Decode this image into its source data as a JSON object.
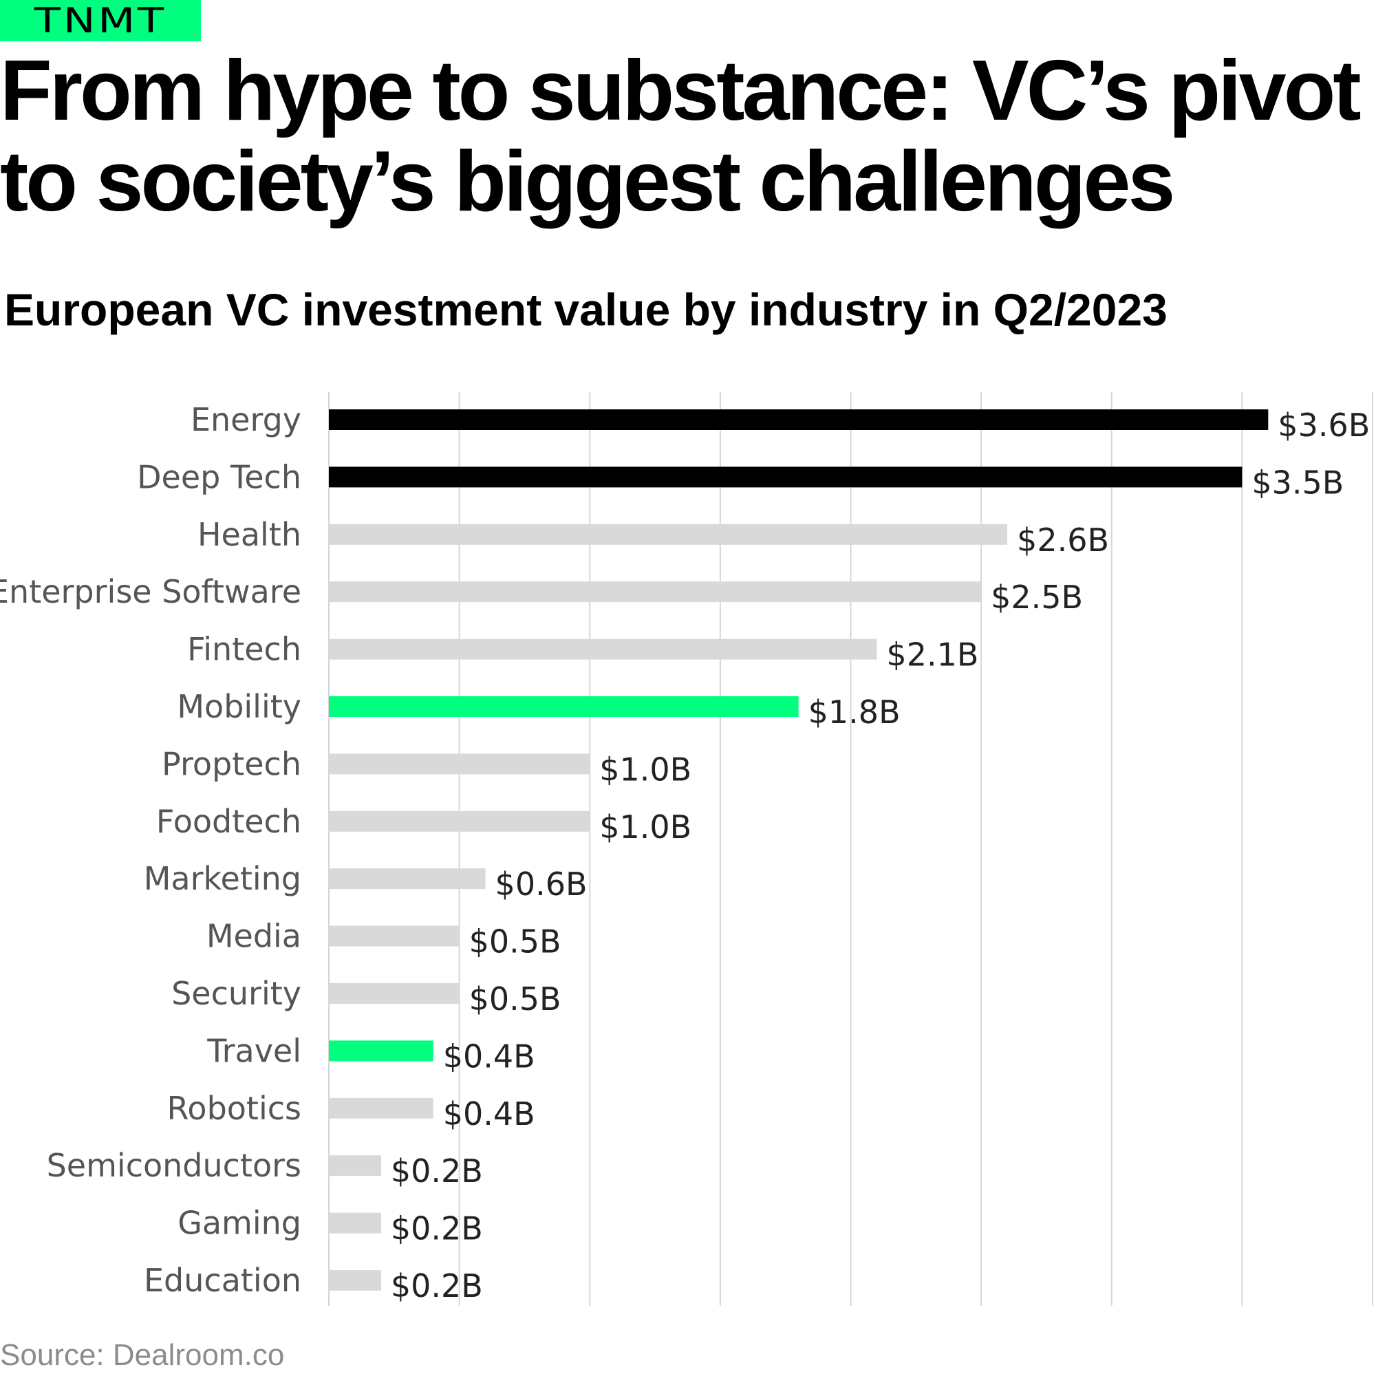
{
  "brand": {
    "logo_text": "TNMT",
    "color": "#00ff7f"
  },
  "headline": "From hype to substance: VC’s pivot to society’s biggest challenges",
  "source": "Source: Dealroom.co",
  "colors": {
    "highlight_dark": "#000000",
    "highlight_green": "#00ff7f",
    "default_bar": "#d9d9d9",
    "gridline": "#d6d6d6"
  },
  "chart_data": {
    "type": "bar",
    "orientation": "horizontal",
    "title": "European VC investment value by industry in Q2/2023",
    "xlabel": "",
    "ylabel": "",
    "unit": "$B",
    "xlim": [
      0,
      4.0
    ],
    "grid": true,
    "categories": [
      "Energy",
      "Deep Tech",
      "Health",
      "Enterprise Software",
      "Fintech",
      "Mobility",
      "Proptech",
      "Foodtech",
      "Marketing",
      "Media",
      "Security",
      "Travel",
      "Robotics",
      "Semiconductors",
      "Gaming",
      "Education"
    ],
    "values": [
      3.6,
      3.5,
      2.6,
      2.5,
      2.1,
      1.8,
      1.0,
      1.0,
      0.6,
      0.5,
      0.5,
      0.4,
      0.4,
      0.2,
      0.2,
      0.2
    ],
    "value_labels": [
      "$3.6B",
      "$3.5B",
      "$2.6B",
      "$2.5B",
      "$2.1B",
      "$1.8B",
      "$1.0B",
      "$1.0B",
      "$0.6B",
      "$0.5B",
      "$0.5B",
      "$0.4B",
      "$0.4B",
      "$0.2B",
      "$0.2B",
      "$0.2B"
    ],
    "bar_colors": [
      "#000000",
      "#000000",
      "#d9d9d9",
      "#d9d9d9",
      "#d9d9d9",
      "#00ff7f",
      "#d9d9d9",
      "#d9d9d9",
      "#d9d9d9",
      "#d9d9d9",
      "#d9d9d9",
      "#00ff7f",
      "#d9d9d9",
      "#d9d9d9",
      "#d9d9d9",
      "#d9d9d9"
    ]
  }
}
